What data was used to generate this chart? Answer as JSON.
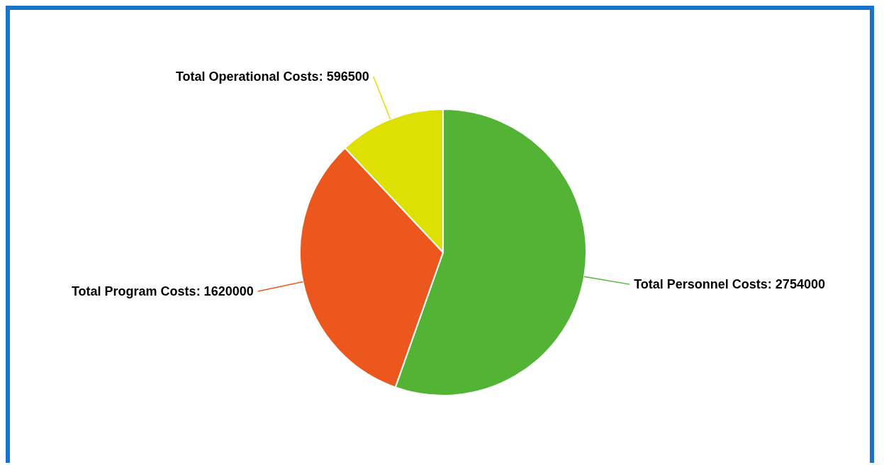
{
  "chart_data": {
    "type": "pie",
    "categories": [
      "Total Personnel Costs",
      "Total Program Costs",
      "Total Operational Costs"
    ],
    "values": [
      2754000,
      1620000,
      596500
    ],
    "value_labels": [
      ": 2754000",
      ": 1620000",
      ": 596500"
    ],
    "colors": [
      "#52b335",
      "#ec571d",
      "#dde000"
    ],
    "legend": false
  }
}
